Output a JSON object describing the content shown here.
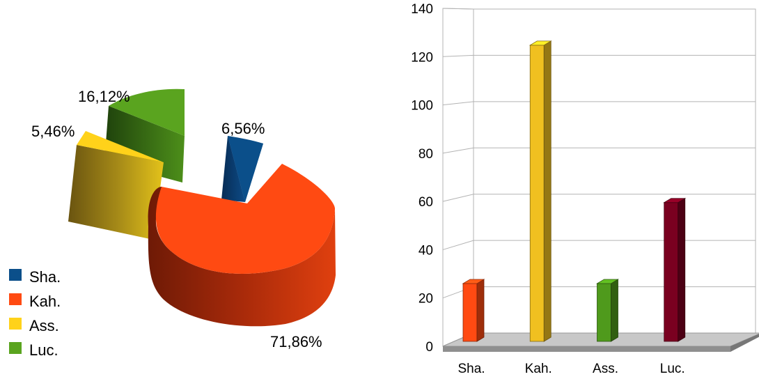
{
  "chart_data": [
    {
      "type": "pie",
      "categories": [
        "Sha.",
        "Kah.",
        "Ass.",
        "Luc."
      ],
      "values": [
        6.56,
        71.86,
        5.46,
        16.12
      ],
      "labels": [
        "6,56%",
        "71,86%",
        "5,46%",
        "16,12%"
      ],
      "colors": [
        "#0b4f8a",
        "#ff4a12",
        "#ffd21a",
        "#5aa41f"
      ],
      "exploded": true,
      "three_d": true,
      "legend": "bottom-left"
    },
    {
      "type": "bar",
      "categories": [
        "Sha.",
        "Kah.",
        "Ass.",
        "Luc."
      ],
      "series": [
        {
          "values": [
            25,
            128,
            25,
            60
          ]
        }
      ],
      "colors": [
        "#ff4a12",
        "#f0c020",
        "#4f9a1c",
        "#7a0020"
      ],
      "ylim": [
        0,
        140
      ],
      "yticks": [
        "0",
        "20",
        "40",
        "60",
        "80",
        "100",
        "120",
        "140"
      ],
      "three_d": true,
      "grid": true
    }
  ]
}
